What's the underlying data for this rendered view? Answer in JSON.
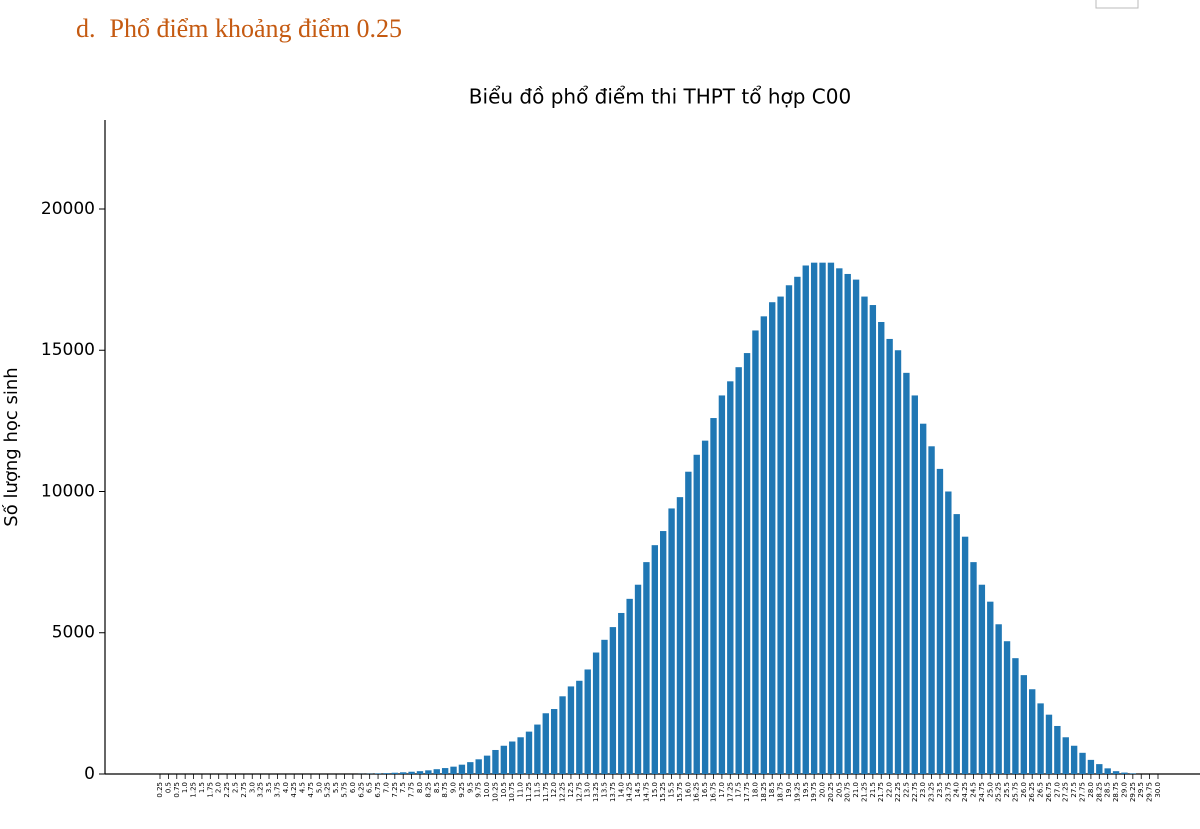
{
  "heading": {
    "marker": "d.",
    "text": "Phổ điểm khoảng điểm 0.25"
  },
  "chart_data": {
    "type": "bar",
    "title": "Biểu đồ phổ điểm thi THPT tổ hợp C00",
    "y_label": "Số lượng học sinh",
    "categories": [
      "0.25",
      "0.5",
      "0.75",
      "1.0",
      "1.25",
      "1.5",
      "1.75",
      "2.0",
      "2.25",
      "2.5",
      "2.75",
      "3.0",
      "3.25",
      "3.5",
      "3.75",
      "4.0",
      "4.25",
      "4.5",
      "4.75",
      "5.0",
      "5.25",
      "5.5",
      "5.75",
      "6.0",
      "6.25",
      "6.5",
      "6.75",
      "7.0",
      "7.25",
      "7.5",
      "7.75",
      "8.0",
      "8.25",
      "8.5",
      "8.75",
      "9.0",
      "9.25",
      "9.5",
      "9.75",
      "10.0",
      "10.25",
      "10.5",
      "10.75",
      "11.0",
      "11.25",
      "11.5",
      "11.75",
      "12.0",
      "12.25",
      "12.5",
      "12.75",
      "13.0",
      "13.25",
      "13.5",
      "13.75",
      "14.0",
      "14.25",
      "14.5",
      "14.75",
      "15.0",
      "15.25",
      "15.5",
      "15.75",
      "16.0",
      "16.25",
      "16.5",
      "16.75",
      "17.0",
      "17.25",
      "17.5",
      "17.75",
      "18.0",
      "18.25",
      "18.5",
      "18.75",
      "19.0",
      "19.25",
      "19.5",
      "19.75",
      "20.0",
      "20.25",
      "20.5",
      "20.75",
      "21.0",
      "21.25",
      "21.5",
      "21.75",
      "22.0",
      "22.25",
      "22.5",
      "22.75",
      "23.0",
      "23.25",
      "23.5",
      "23.75",
      "24.0",
      "24.25",
      "24.5",
      "24.75",
      "25.0",
      "25.25",
      "25.5",
      "25.75",
      "26.0",
      "26.25",
      "26.5",
      "26.75",
      "27.0",
      "27.25",
      "27.5",
      "27.75",
      "28.0",
      "28.25",
      "28.5",
      "28.75",
      "29.0",
      "29.25",
      "29.5",
      "29.75",
      "30.0"
    ],
    "values": [
      0,
      0,
      0,
      0,
      0,
      0,
      0,
      0,
      0,
      0,
      0,
      0,
      0,
      0,
      0,
      0,
      0,
      0,
      0,
      0,
      0,
      0,
      0,
      0,
      5,
      10,
      20,
      30,
      45,
      60,
      80,
      100,
      130,
      170,
      210,
      260,
      330,
      420,
      520,
      650,
      850,
      1000,
      1150,
      1300,
      1500,
      1750,
      2150,
      2300,
      2750,
      3100,
      3300,
      3700,
      4300,
      4750,
      5200,
      5700,
      6200,
      6700,
      7500,
      8100,
      8600,
      9400,
      9800,
      10700,
      11300,
      11800,
      12600,
      13400,
      13900,
      14400,
      14900,
      15700,
      16200,
      16700,
      16900,
      17300,
      17600,
      18000,
      18100,
      18100,
      18100,
      17900,
      17700,
      17500,
      16900,
      16600,
      16000,
      15400,
      15000,
      14200,
      13400,
      12400,
      11600,
      10800,
      10000,
      9200,
      8400,
      7500,
      6700,
      6100,
      5300,
      4700,
      4100,
      3500,
      3000,
      2500,
      2100,
      1700,
      1300,
      1000,
      750,
      500,
      350,
      200,
      100,
      50,
      20,
      0,
      0,
      0
    ],
    "color": "#1f77b4",
    "ylim": [
      0,
      23150
    ],
    "yticks": [
      0,
      5000,
      10000,
      15000,
      20000
    ]
  }
}
